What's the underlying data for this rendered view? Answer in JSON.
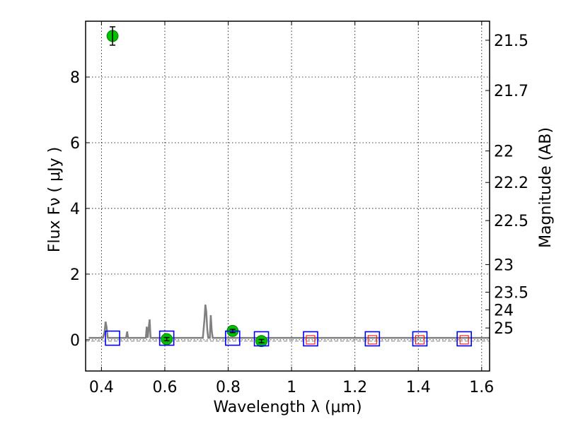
{
  "chart_data": {
    "type": "scatter",
    "xlabel": "Wavelength  λ (μm)",
    "ylabel": "Flux  Fν  ( μJy )",
    "y2label": "Magnitude (AB)",
    "xlim": [
      0.35,
      1.625
    ],
    "ylim": [
      -0.95,
      9.7
    ],
    "grid": true,
    "x_ticks": [
      {
        "value": 0.4,
        "label": "0.4"
      },
      {
        "value": 0.6,
        "label": "0.6"
      },
      {
        "value": 0.8,
        "label": "0.8"
      },
      {
        "value": 1.0,
        "label": "1"
      },
      {
        "value": 1.2,
        "label": "1.2"
      },
      {
        "value": 1.4,
        "label": "1.4"
      },
      {
        "value": 1.6,
        "label": "1.6"
      }
    ],
    "y_ticks": [
      {
        "value": 0,
        "label": "0"
      },
      {
        "value": 2,
        "label": "2"
      },
      {
        "value": 4,
        "label": "4"
      },
      {
        "value": 6,
        "label": "6"
      },
      {
        "value": 8,
        "label": "8"
      }
    ],
    "mag_ticks": [
      {
        "flux": 9.12,
        "label": "21.5"
      },
      {
        "flux": 7.59,
        "label": "21.7"
      },
      {
        "flux": 5.75,
        "label": "22"
      },
      {
        "flux": 4.79,
        "label": "22.2"
      },
      {
        "flux": 3.63,
        "label": "22.5"
      },
      {
        "flux": 2.29,
        "label": "23"
      },
      {
        "flux": 1.45,
        "label": "23.5"
      },
      {
        "flux": 0.91,
        "label": "24"
      },
      {
        "flux": 0.36,
        "label": "25"
      }
    ],
    "series": [
      {
        "kind": "observed",
        "color": "#00c000",
        "points": [
          {
            "x": 0.435,
            "y": 9.25,
            "yerr": 0.28
          },
          {
            "x": 0.606,
            "y": 0.02,
            "yerr": 0.05
          },
          {
            "x": 0.814,
            "y": 0.27,
            "yerr": 0.05
          },
          {
            "x": 0.905,
            "y": -0.04,
            "yerr": 0.05
          }
        ]
      },
      {
        "kind": "model",
        "color": "#0000ff",
        "points": [
          {
            "x": 0.435,
            "y": 0.05
          },
          {
            "x": 0.606,
            "y": 0.05
          },
          {
            "x": 0.814,
            "y": 0.05
          },
          {
            "x": 0.905,
            "y": 0.03
          },
          {
            "x": 1.06,
            "y": 0.03
          },
          {
            "x": 1.255,
            "y": 0.03
          },
          {
            "x": 1.405,
            "y": 0.03
          },
          {
            "x": 1.545,
            "y": 0.03
          }
        ]
      },
      {
        "kind": "upper-limit",
        "color": "#ff0000",
        "points": [
          {
            "x": 1.06,
            "y": 0.0
          },
          {
            "x": 1.255,
            "y": 0.0
          },
          {
            "x": 1.405,
            "y": 0.0
          },
          {
            "x": 1.545,
            "y": 0.0
          }
        ]
      }
    ],
    "template": {
      "color": "#808080",
      "x": [
        0.36,
        0.405,
        0.41,
        0.413,
        0.416,
        0.42,
        0.478,
        0.481,
        0.484,
        0.54,
        0.543,
        0.546,
        0.549,
        0.552,
        0.555,
        0.558,
        0.561,
        0.72,
        0.725,
        0.728,
        0.731,
        0.734,
        0.737,
        0.742,
        0.745,
        0.748,
        0.751,
        1.625
      ],
      "y": [
        0.06,
        0.06,
        0.25,
        0.55,
        0.4,
        0.06,
        0.06,
        0.25,
        0.06,
        0.06,
        0.4,
        0.06,
        0.35,
        0.62,
        0.06,
        0.06,
        0.06,
        0.06,
        0.6,
        1.07,
        0.85,
        0.3,
        0.06,
        0.06,
        0.75,
        0.3,
        0.06,
        0.06
      ]
    },
    "zero_line_flux": -0.04
  }
}
